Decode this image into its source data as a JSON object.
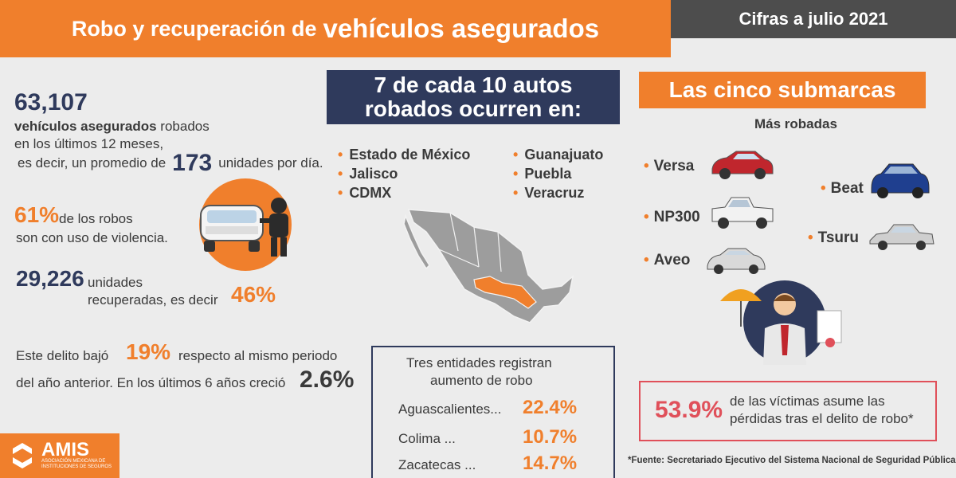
{
  "header": {
    "title_part1": "Robo y recuperación de",
    "title_part2": "vehículos asegurados",
    "date": "Cifras a julio 2021",
    "accent_color": "#f07f2c",
    "navy_color": "#2f3a5c"
  },
  "stolen": {
    "total": "63,107",
    "desc_bold": "vehículos asegurados",
    "desc_rest": " robados",
    "desc_line2": "en los últimos 12 meses,",
    "daily_prefix": "es decir, un promedio de",
    "daily_number": "173",
    "daily_suffix": "unidades por día."
  },
  "violence": {
    "pct": "61%",
    "desc1": "de los robos",
    "desc2": "son con uso de violencia."
  },
  "recovered": {
    "number": "29,226",
    "desc1": "unidades",
    "desc2": "recuperadas, es decir",
    "pct": "46%"
  },
  "trend": {
    "text1": "Este delito bajó",
    "decrease_pct": "19%",
    "text2": "respecto al mismo periodo",
    "text3": "del año anterior.  En los últimos 6 años creció",
    "growth_pct": "2.6%"
  },
  "states": {
    "heading_line1": "7 de cada 10 autos",
    "heading_line2": "robados ocurren en:",
    "col1": [
      "Estado de México",
      "Jalisco",
      "CDMX"
    ],
    "col2": [
      "Guanajuato",
      "Puebla",
      "Veracruz"
    ]
  },
  "increase": {
    "title1": "Tres entidades registran",
    "title2": "aumento de robo",
    "rows": [
      {
        "name": "Aguascalientes...",
        "value": "22.4%"
      },
      {
        "name": "Colima ...",
        "value": "10.7%"
      },
      {
        "name": "Zacatecas ...",
        "value": "14.7%"
      }
    ]
  },
  "brands": {
    "heading": "Las cinco submarcas",
    "subtitle": "Más robadas",
    "cars": [
      {
        "name": "Versa",
        "color": "#c0262d"
      },
      {
        "name": "Beat",
        "color": "#1f3f8f"
      },
      {
        "name": "NP300",
        "color": "#f2f2f2"
      },
      {
        "name": "Tsuru",
        "color": "#cfcfcf"
      },
      {
        "name": "Aveo",
        "color": "#d9d9d9"
      }
    ]
  },
  "victims": {
    "pct": "53.9%",
    "desc1": "de las víctimas asume las",
    "desc2": "pérdidas tras el delito de robo*"
  },
  "source": "*Fuente: Secretariado Ejecutivo del Sistema Nacional de Seguridad Pública",
  "logo": {
    "brand": "AMIS",
    "tagline": "ASOCIACIÓN MEXICANA DE INSTITUCIONES DE SEGUROS"
  }
}
